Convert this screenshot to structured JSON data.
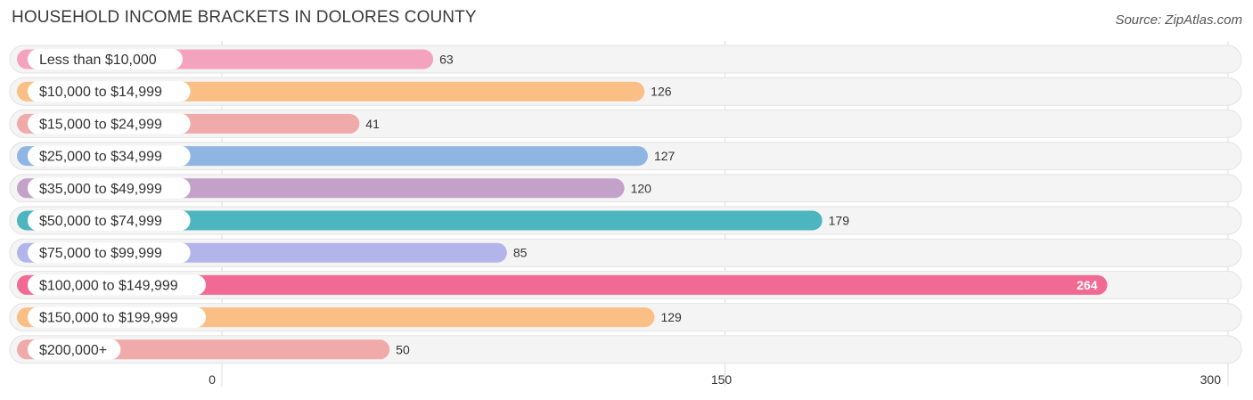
{
  "header": {
    "title": "HOUSEHOLD INCOME BRACKETS IN DOLORES COUNTY",
    "source": "Source: ZipAtlas.com"
  },
  "chart_data": {
    "type": "bar",
    "orientation": "horizontal",
    "title": "HOUSEHOLD INCOME BRACKETS IN DOLORES COUNTY",
    "categories": [
      "Less than $10,000",
      "$10,000 to $14,999",
      "$15,000 to $24,999",
      "$25,000 to $34,999",
      "$35,000 to $49,999",
      "$50,000 to $74,999",
      "$75,000 to $99,999",
      "$100,000 to $149,999",
      "$150,000 to $199,999",
      "$200,000+"
    ],
    "values": [
      63,
      126,
      41,
      127,
      120,
      179,
      85,
      264,
      129,
      50
    ],
    "colors": [
      "#f4a3bf",
      "#f9bf85",
      "#efaaa9",
      "#8fb5e3",
      "#c3a1c9",
      "#4db5bf",
      "#b3b5ea",
      "#f16a94",
      "#f9bf85",
      "#efaaa9"
    ],
    "xlim": [
      0,
      300
    ],
    "xticks": [
      0,
      150,
      300
    ],
    "xtick_labels": [
      "0",
      "150",
      "300"
    ],
    "grid": true,
    "legend": "none"
  }
}
